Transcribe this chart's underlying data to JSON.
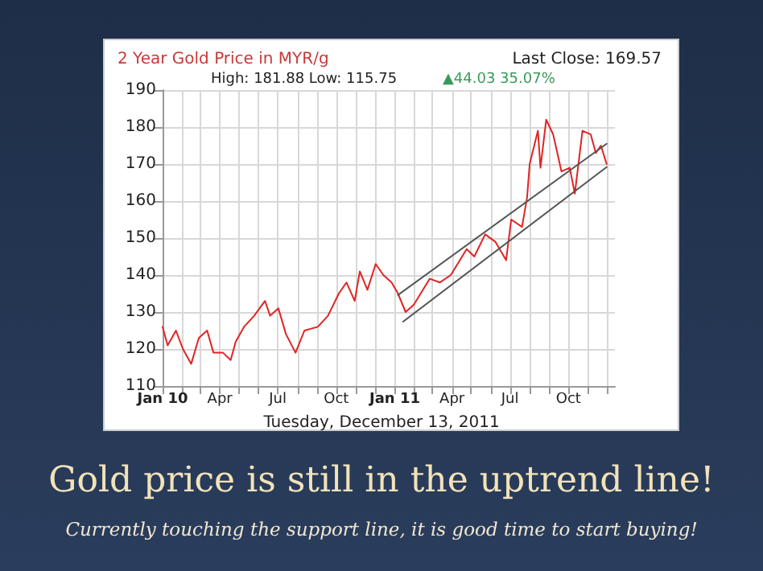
{
  "chart_data": {
    "type": "line",
    "title": "2 Year Gold Price in MYR/g",
    "annotations": [
      "Last Close: 169.57",
      "High: 181.88 Low: 115.75",
      "▲44.03 35.07%",
      "Tuesday, December 13, 2011",
      "Gold price is still in the uptrend line!",
      "Currently touching the support line, it is good time to start buying!"
    ],
    "series": [
      {
        "color": "#e02424",
        "x": [
          "2010-01-01",
          "2010-01-09",
          "2010-01-22",
          "2010-02-02",
          "2010-02-15",
          "2010-02-27",
          "2010-03-12",
          "2010-03-22",
          "2010-04-06",
          "2010-04-18",
          "2010-04-26",
          "2010-05-09",
          "2010-05-25",
          "2010-06-11",
          "2010-06-19",
          "2010-07-02",
          "2010-07-14",
          "2010-07-29",
          "2010-08-12",
          "2010-09-02",
          "2010-09-18",
          "2010-10-05",
          "2010-10-17",
          "2010-10-30",
          "2010-11-07",
          "2010-11-19",
          "2010-12-02",
          "2010-12-14",
          "2010-12-27",
          "2011-01-06",
          "2011-01-18",
          "2011-01-31",
          "2011-02-25",
          "2011-03-13",
          "2011-03-30",
          "2011-04-24",
          "2011-05-06",
          "2011-05-23",
          "2011-06-08",
          "2011-06-25",
          "2011-07-03",
          "2011-07-20",
          "2011-07-28",
          "2011-08-01",
          "2011-08-14",
          "2011-08-18",
          "2011-08-27",
          "2011-09-07",
          "2011-09-20",
          "2011-10-03",
          "2011-10-11",
          "2011-10-23",
          "2011-11-05",
          "2011-11-13",
          "2011-11-21",
          "2011-11-30"
        ],
        "values": [
          126,
          121,
          125,
          120,
          116,
          123,
          125,
          119,
          119,
          117,
          122,
          126,
          129,
          133,
          129,
          131,
          124,
          119,
          125,
          126,
          129,
          135,
          138,
          133,
          141,
          136,
          143,
          140,
          138,
          135,
          130,
          132,
          139,
          138,
          140,
          147,
          145,
          151,
          149,
          144,
          155,
          153,
          161,
          170,
          179,
          169,
          182,
          178,
          168,
          169,
          162,
          179,
          178,
          173,
          175,
          170
        ]
      },
      {
        "color": "#555555",
        "x": [
          "2011-01-06",
          "2011-11-30"
        ],
        "values": [
          134.6,
          175.5
        ]
      },
      {
        "color": "#555555",
        "x": [
          "2011-01-14",
          "2011-11-30"
        ],
        "values": [
          127.4,
          169.2
        ]
      }
    ],
    "xlim": [
      "2010-01-01",
      "2011-12-13"
    ],
    "xticks": [
      {
        "value": "2010-01-01",
        "label": "Jan 10"
      },
      {
        "value": "2010-02-01",
        "label": null
      },
      {
        "value": "2010-03-01",
        "label": null
      },
      {
        "value": "2010-04-01",
        "label": "Apr"
      },
      {
        "value": "2010-05-01",
        "label": null
      },
      {
        "value": "2010-06-01",
        "label": null
      },
      {
        "value": "2010-07-01",
        "label": "Jul"
      },
      {
        "value": "2010-08-01",
        "label": null
      },
      {
        "value": "2010-09-01",
        "label": null
      },
      {
        "value": "2010-10-01",
        "label": "Oct"
      },
      {
        "value": "2010-11-01",
        "label": null
      },
      {
        "value": "2010-12-01",
        "label": null
      },
      {
        "value": "2011-01-01",
        "label": "Jan 11"
      },
      {
        "value": "2011-02-01",
        "label": null
      },
      {
        "value": "2011-03-01",
        "label": null
      },
      {
        "value": "2011-04-01",
        "label": "Apr"
      },
      {
        "value": "2011-05-01",
        "label": null
      },
      {
        "value": "2011-06-01",
        "label": null
      },
      {
        "value": "2011-07-01",
        "label": "Jul"
      },
      {
        "value": "2011-08-01",
        "label": null
      },
      {
        "value": "2011-09-01",
        "label": null
      },
      {
        "value": "2011-10-01",
        "label": "Oct"
      },
      {
        "value": "2011-11-01",
        "label": null
      },
      {
        "value": "2011-12-01",
        "label": null
      }
    ],
    "ylim": [
      110,
      190
    ],
    "yticks": [
      110,
      120,
      130,
      140,
      150,
      160,
      170,
      180,
      190
    ],
    "grid": true,
    "marker": "none",
    "line_style": "solid"
  }
}
